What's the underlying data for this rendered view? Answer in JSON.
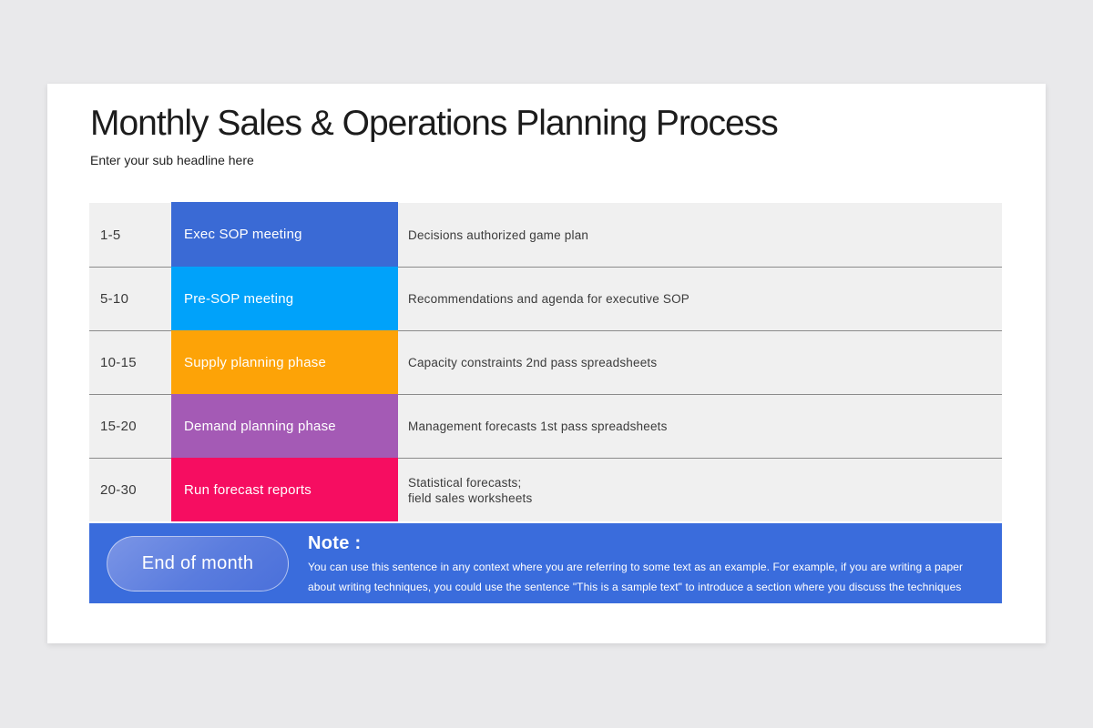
{
  "page": {
    "background_color": "#e9e9eb",
    "card_color": "#ffffff"
  },
  "header": {
    "title": "Monthly Sales & Operations Planning Process",
    "subtitle": "Enter your sub headline here"
  },
  "table": {
    "row_background": "#f0f0f0",
    "separator_color": "#8b8b8b",
    "rows": [
      {
        "range": "1-5",
        "phase": "Exec SOP meeting",
        "color": "#3a6ad5",
        "description": "Decisions authorized game plan"
      },
      {
        "range": "5-10",
        "phase": "Pre-SOP meeting",
        "color": "#00a2fa",
        "description": "Recommendations and agenda for executive SOP"
      },
      {
        "range": "10-15",
        "phase": "Supply planning phase",
        "color": "#fda307",
        "description": "Capacity constraints 2nd pass spreadsheets"
      },
      {
        "range": "15-20",
        "phase": "Demand planning phase",
        "color": "#a45ab5",
        "description": "Management forecasts 1st pass spreadsheets"
      },
      {
        "range": "20-30",
        "phase": "Run forecast reports",
        "color": "#f60d61",
        "description": "Statistical forecasts;\nfield sales worksheets"
      }
    ]
  },
  "footer": {
    "bar_color": "#3a6cdc",
    "badge_label": "End of month",
    "note_heading": "Note :",
    "note_text": "You can use this sentence in any context where you are referring to some text as an example. For example, if you are writing a paper\nabout writing techniques, you could use the sentence \"This is a sample text\" to introduce a section where you discuss the techniques"
  }
}
